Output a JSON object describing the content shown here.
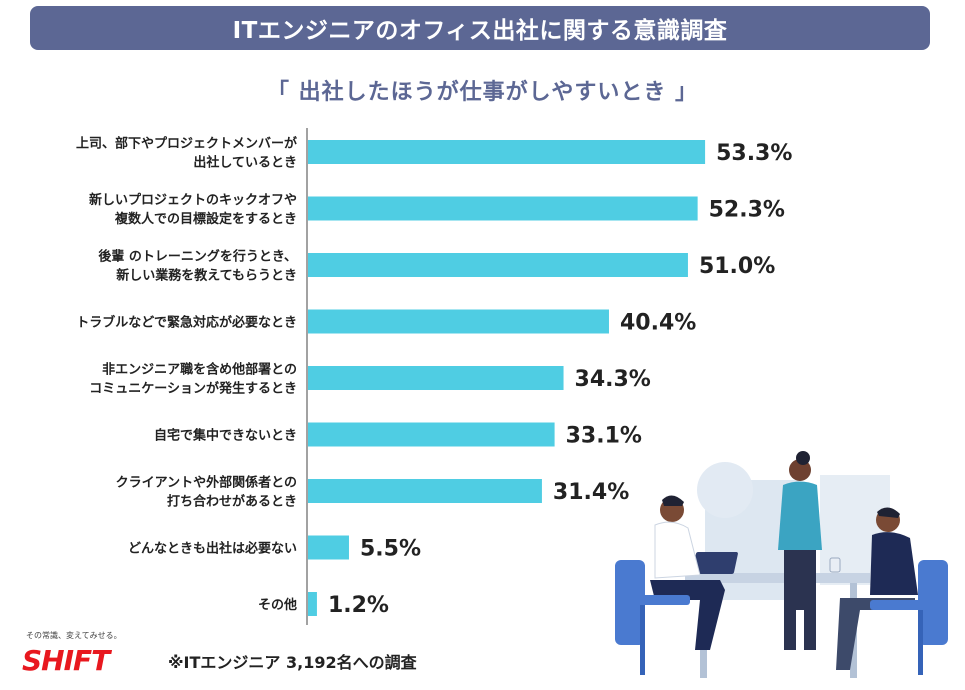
{
  "header": {
    "banner_title": "ITエンジニアのオフィス出社に関する意識調査",
    "subtitle": "「 出社したほうが仕事がしやすいとき 」"
  },
  "chart_data": {
    "type": "bar",
    "orientation": "horizontal",
    "categories": [
      [
        "上司、部下やプロジェクトメンバーが",
        "出社しているとき"
      ],
      [
        "新しいプロジェクトのキックオフや",
        "複数人での目標設定をするとき"
      ],
      [
        "後輩 のトレーニングを行うとき、",
        "新しい業務を教えてもらうとき"
      ],
      [
        "トラブルなどで緊急対応が必要なとき"
      ],
      [
        "非エンジニア職を含め他部署との",
        "コミュニケーションが発生するとき"
      ],
      [
        "自宅で集中できないとき"
      ],
      [
        "クライアントや外部関係者との",
        "打ち合わせがあるとき"
      ],
      [
        "どんなときも出社は必要ない"
      ],
      [
        "その他"
      ]
    ],
    "values": [
      53.3,
      52.3,
      51.0,
      40.4,
      34.3,
      33.1,
      31.4,
      5.5,
      1.2
    ],
    "value_labels": [
      "53.3%",
      "52.3%",
      "51.0%",
      "40.4%",
      "34.3%",
      "33.1%",
      "31.4%",
      "5.5%",
      "1.2%"
    ],
    "unit": "%",
    "bar_color": "#4fcde3",
    "grid": false,
    "legend": "none"
  },
  "footer": {
    "brand_tagline": "その常識、変えてみせる。",
    "brand_name": "SHIFT",
    "footnote": "※ITエンジニア 3,192名への調査"
  },
  "illustration": {
    "description_icon": "office-meeting-illustration"
  },
  "colors": {
    "banner": "#5c6794",
    "subtitle": "#5c6794",
    "bar": "#4fcde3",
    "brand": "#e8181f"
  }
}
